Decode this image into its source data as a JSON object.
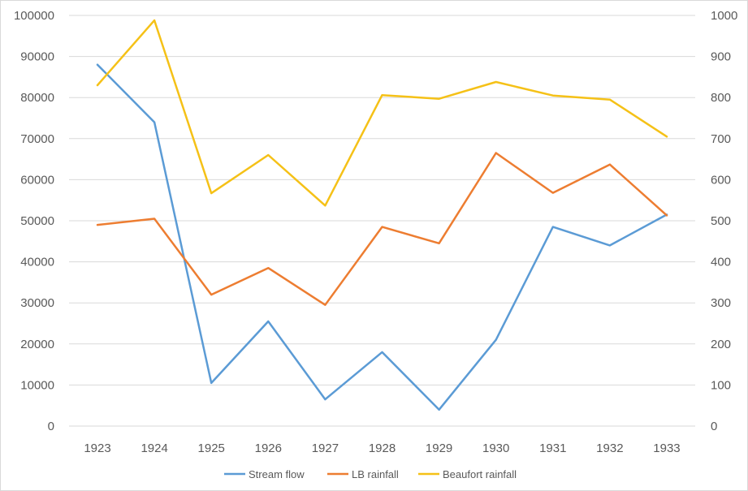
{
  "chart_data": {
    "type": "line",
    "title": "",
    "xlabel": "",
    "ylabel": "",
    "categories": [
      "1923",
      "1924",
      "1925",
      "1926",
      "1927",
      "1928",
      "1929",
      "1930",
      "1931",
      "1932",
      "1933"
    ],
    "y_left": {
      "min": 0,
      "max": 100000,
      "step": 10000,
      "tick_labels": [
        "0",
        "10000",
        "20000",
        "30000",
        "40000",
        "50000",
        "60000",
        "70000",
        "80000",
        "90000",
        "100000"
      ]
    },
    "y_right": {
      "min": 0,
      "max": 1000,
      "step": 100,
      "tick_labels": [
        "0",
        "100",
        "200",
        "300",
        "400",
        "500",
        "600",
        "700",
        "800",
        "900",
        "1000"
      ]
    },
    "grid": true,
    "legend_position": "bottom",
    "series": [
      {
        "name": "Stream flow",
        "axis": "left",
        "color": "#5b9bd5",
        "values": [
          88000,
          74000,
          10500,
          25500,
          6500,
          18000,
          4000,
          21000,
          48500,
          44000,
          51500
        ]
      },
      {
        "name": "LB rainfall",
        "axis": "right",
        "color": "#ed7d31",
        "values": [
          490,
          505,
          320,
          385,
          295,
          485,
          445,
          665,
          568,
          637,
          513
        ]
      },
      {
        "name": "Beaufort rainfall",
        "axis": "right",
        "color": "#f5c117",
        "values": [
          830,
          988,
          567,
          660,
          537,
          806,
          797,
          838,
          805,
          795,
          705
        ]
      }
    ]
  }
}
